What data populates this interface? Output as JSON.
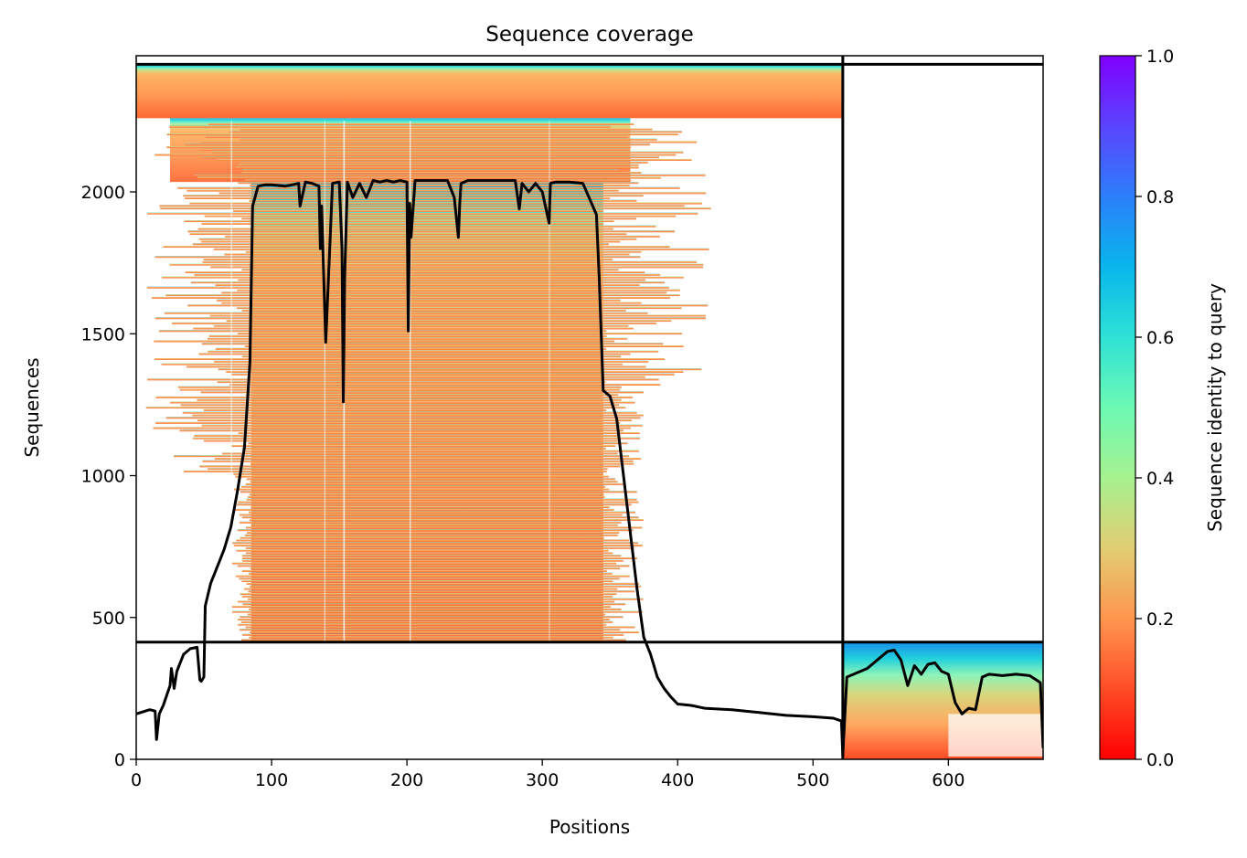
{
  "chart_data": {
    "type": "heatmap",
    "title": "Sequence coverage",
    "xlabel": "Positions",
    "ylabel": "Sequences",
    "xlim": [
      0,
      670
    ],
    "ylim": [
      0,
      2480
    ],
    "x_ticks": [
      "0",
      "100",
      "200",
      "300",
      "400",
      "500",
      "600"
    ],
    "x_tick_values": [
      0,
      100,
      200,
      300,
      400,
      500,
      600
    ],
    "y_ticks": [
      "0",
      "500",
      "1000",
      "1500",
      "2000"
    ],
    "y_tick_values": [
      0,
      500,
      1000,
      1500,
      2000
    ],
    "colorbar": {
      "label": "Sequence identity to query",
      "range": [
        0,
        1
      ],
      "ticks": [
        "0.0",
        "0.2",
        "0.4",
        "0.6",
        "0.8",
        "1.0"
      ],
      "tick_values": [
        0,
        0.2,
        0.4,
        0.6,
        0.8,
        1.0
      ],
      "colormap": "rainbow_r"
    },
    "segment_boundary_x": 522,
    "segment_boundary_y": 413,
    "blocks": [
      {
        "name": "segment-1",
        "x_range": [
          0,
          522
        ],
        "y_range": [
          413,
          2480
        ],
        "identity_top": 0.65,
        "identity_bottom": 0.18
      },
      {
        "name": "segment-2",
        "x_range": [
          522,
          670
        ],
        "y_range": [
          0,
          413
        ],
        "identity_top": 0.78,
        "identity_bottom": 0.12
      }
    ],
    "coverage_line": {
      "color": "#000000",
      "x": [
        0,
        10,
        14,
        15,
        17,
        20,
        25,
        26,
        28,
        30,
        35,
        40,
        45,
        47,
        48,
        50,
        51,
        55,
        60,
        65,
        70,
        75,
        80,
        84,
        86,
        90,
        95,
        100,
        110,
        120,
        121,
        125,
        130,
        135,
        136,
        137,
        140,
        145,
        150,
        152,
        153,
        154,
        156,
        160,
        165,
        170,
        175,
        180,
        185,
        190,
        195,
        200,
        201,
        202,
        203,
        206,
        210,
        220,
        230,
        235,
        238,
        239,
        240,
        245,
        250,
        260,
        270,
        280,
        283,
        285,
        290,
        295,
        300,
        305,
        306,
        310,
        320,
        330,
        340,
        342,
        345,
        350,
        355,
        360,
        365,
        370,
        375,
        380,
        385,
        390,
        395,
        400,
        410,
        420,
        440,
        460,
        480,
        500,
        515,
        521,
        522
      ],
      "y": [
        160,
        175,
        170,
        70,
        160,
        190,
        260,
        320,
        250,
        310,
        370,
        390,
        395,
        280,
        275,
        290,
        540,
        620,
        680,
        740,
        820,
        950,
        1100,
        1400,
        1950,
        2020,
        2025,
        2025,
        2020,
        2030,
        1950,
        2035,
        2030,
        2020,
        1800,
        1950,
        1470,
        2030,
        2035,
        1800,
        1260,
        1700,
        2035,
        1980,
        2030,
        1980,
        2040,
        2035,
        2040,
        2035,
        2040,
        2035,
        1510,
        1960,
        1840,
        2040,
        2040,
        2040,
        2040,
        1980,
        1840,
        1960,
        2030,
        2040,
        2040,
        2040,
        2040,
        2040,
        1940,
        2030,
        2000,
        2030,
        2000,
        1890,
        2030,
        2035,
        2035,
        2030,
        1920,
        1700,
        1300,
        1280,
        1200,
        1000,
        800,
        600,
        430,
        370,
        290,
        250,
        220,
        195,
        190,
        180,
        175,
        165,
        155,
        150,
        145,
        135,
        10
      ],
      "x2": [
        522,
        525,
        530,
        540,
        550,
        555,
        560,
        565,
        570,
        575,
        580,
        585,
        590,
        595,
        600,
        605,
        610,
        615,
        620,
        625,
        630,
        640,
        650,
        660,
        665,
        668,
        670
      ],
      "y2": [
        15,
        290,
        300,
        320,
        360,
        380,
        385,
        350,
        260,
        330,
        300,
        335,
        340,
        310,
        300,
        200,
        160,
        180,
        175,
        290,
        300,
        295,
        300,
        295,
        280,
        270,
        40
      ]
    }
  }
}
